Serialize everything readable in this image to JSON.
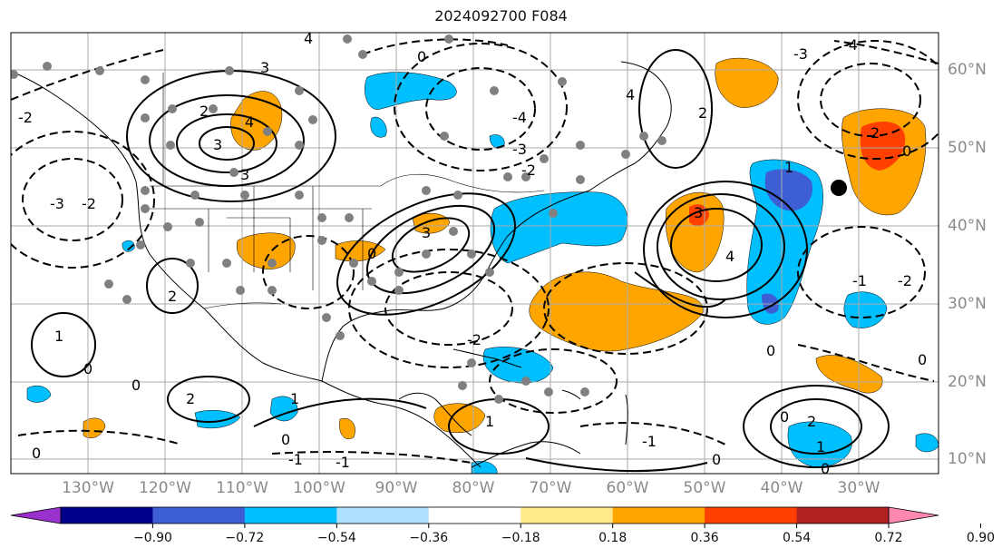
{
  "title": "2024092700 F084",
  "lon_labels": [
    "130°W",
    "120°W",
    "110°W",
    "100°W",
    "90°W",
    "80°W",
    "70°W",
    "60°W",
    "50°W",
    "40°W",
    "30°W"
  ],
  "lat_labels": [
    "60°N",
    "50°N",
    "40°N",
    "30°N",
    "20°N",
    "10°N"
  ],
  "colorbar": {
    "ticks": [
      "−0.90",
      "−0.72",
      "−0.54",
      "−0.36",
      "−0.18",
      "0.18",
      "0.36",
      "0.54",
      "0.72",
      "0.90"
    ],
    "colors": [
      "#9932cc",
      "#00008b",
      "#3d5fd3",
      "#00bfff",
      "#b0e0ff",
      "#ffffff",
      "#ffe98a",
      "#ffa500",
      "#ff4000",
      "#b22222",
      "#ff88b0"
    ],
    "extend": "both"
  },
  "contour_labels": [
    "4",
    "3",
    "2",
    "1",
    "0",
    "-1",
    "-2",
    "-3",
    "-4"
  ],
  "colors": {
    "positive_fill": "#ffa500",
    "strong_positive_fill": "#ff4000",
    "negative_fill": "#00bfff",
    "strong_negative_fill": "#3d5fd3",
    "contour": "#000000",
    "grid": "#aaaaaa",
    "coastline": "#000000",
    "station_dot": "#808080"
  }
}
